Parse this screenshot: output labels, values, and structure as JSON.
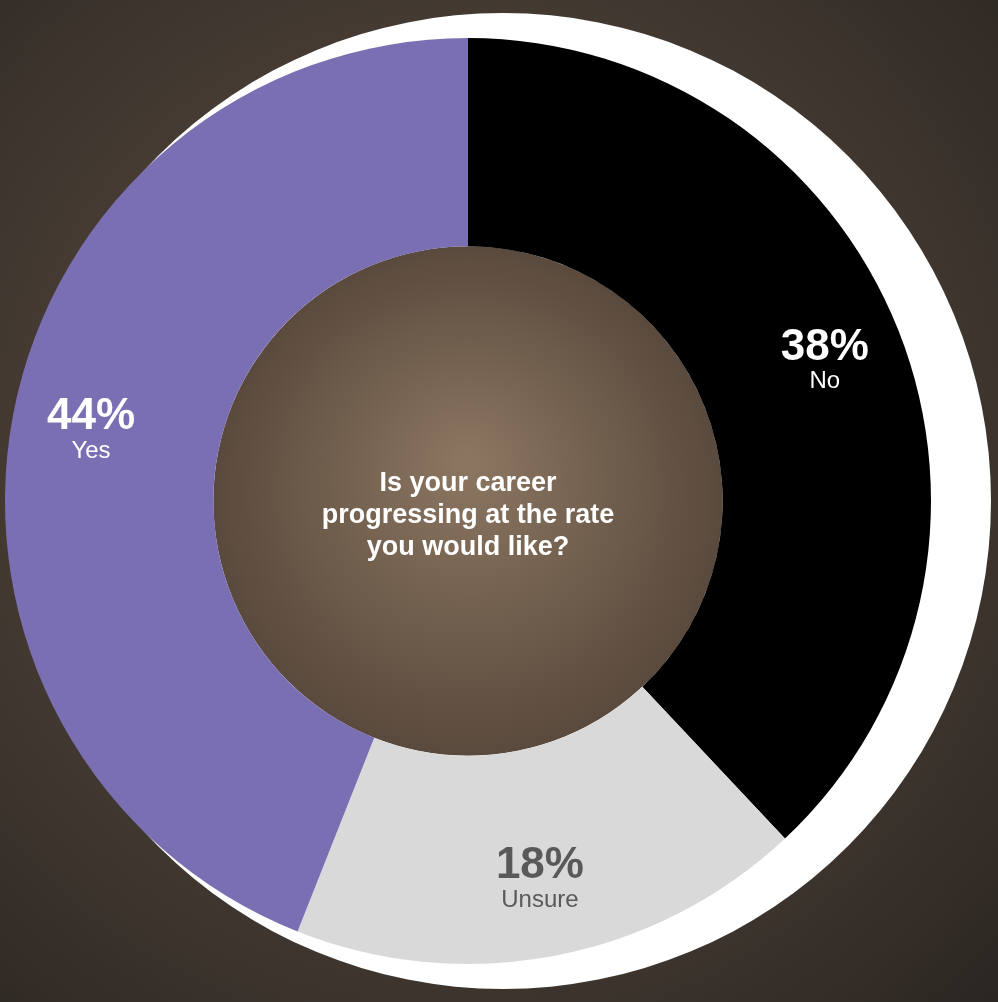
{
  "chart_data": {
    "type": "doughnut",
    "title": "Is your career progressing at the rate you would like?",
    "categories": [
      "No",
      "Unsure",
      "Yes"
    ],
    "values": [
      38,
      18,
      44
    ],
    "value_labels": [
      "38%",
      "18%",
      "44%"
    ],
    "colors": [
      "#000000",
      "#d9d9d9",
      "#7b6fb4"
    ],
    "data_labels": true
  }
}
